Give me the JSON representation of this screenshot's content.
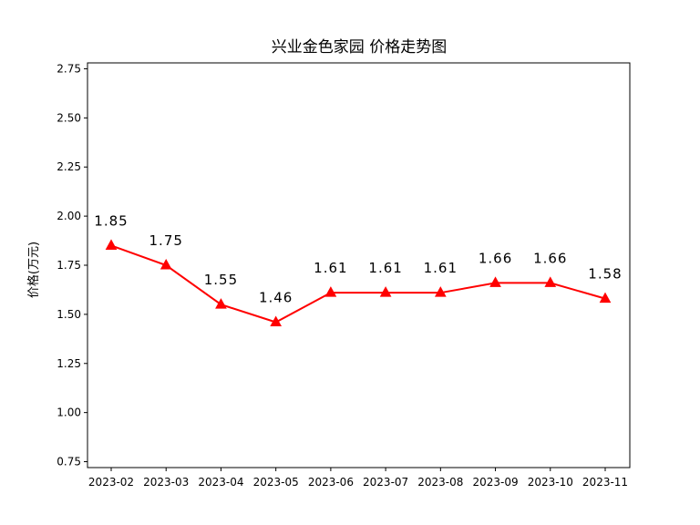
{
  "chart_data": {
    "type": "line",
    "title": "兴业金色家园 价格走势图",
    "xlabel": "",
    "ylabel": "价格(万元)",
    "categories": [
      "2023-02",
      "2023-03",
      "2023-04",
      "2023-05",
      "2023-06",
      "2023-07",
      "2023-08",
      "2023-09",
      "2023-10",
      "2023-11"
    ],
    "series": [
      {
        "values": [
          1.85,
          1.75,
          1.55,
          1.46,
          1.61,
          1.61,
          1.61,
          1.66,
          1.66,
          1.58
        ],
        "color": "#ff0000",
        "marker": "triangle-up"
      }
    ],
    "data_labels": [
      "1.85",
      "1.75",
      "1.55",
      "1.46",
      "1.61",
      "1.61",
      "1.61",
      "1.66",
      "1.66",
      "1.58"
    ],
    "yticks": [
      0.75,
      1.0,
      1.25,
      1.5,
      1.75,
      2.0,
      2.25,
      2.5,
      2.75
    ],
    "ytick_labels": [
      "0.75",
      "1.00",
      "1.25",
      "1.50",
      "1.75",
      "2.00",
      "2.25",
      "2.50",
      "2.75"
    ],
    "ylim": [
      0.72,
      2.78
    ],
    "grid": false,
    "legend": "none"
  }
}
